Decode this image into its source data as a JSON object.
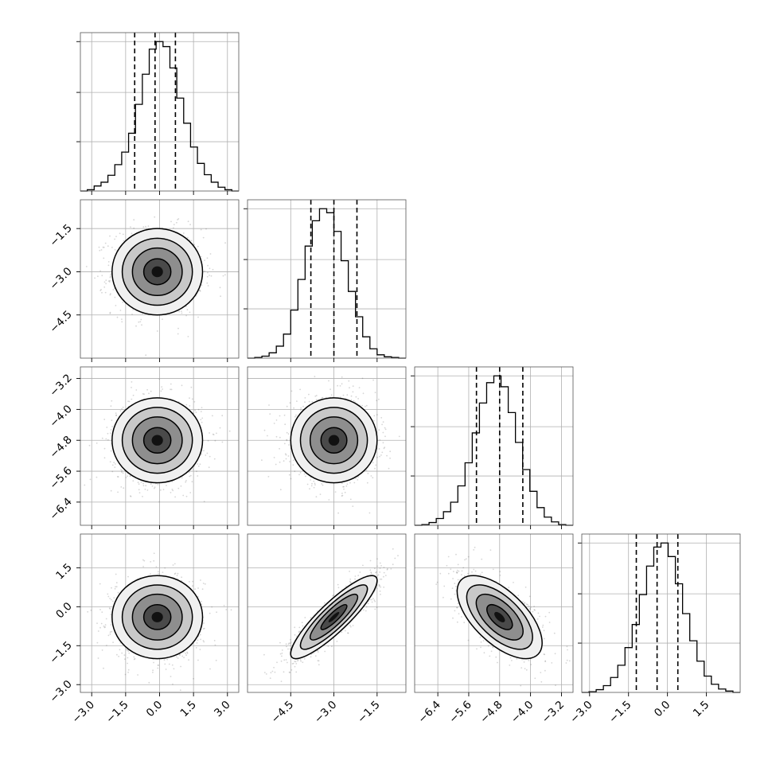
{
  "chart_data": {
    "type": "corner",
    "parameters": 4,
    "grid": true,
    "axes": [
      {
        "range": [
          -3.5,
          3.5
        ],
        "ticks": [
          -3.0,
          -1.5,
          0.0,
          1.5,
          3.0
        ],
        "tick_labels": [
          "−3.0",
          "−1.5",
          "0.0",
          "1.5",
          "3.0"
        ]
      },
      {
        "range": [
          -6.0,
          -0.5
        ],
        "ticks": [
          -4.5,
          -3.0,
          -1.5
        ],
        "tick_labels": [
          "−4.5",
          "−3.0",
          "−1.5"
        ]
      },
      {
        "range": [
          -7.0,
          -2.9
        ],
        "ticks": [
          -6.4,
          -5.6,
          -4.8,
          -4.0,
          -3.2
        ],
        "tick_labels": [
          "−6.4",
          "−5.6",
          "−4.8",
          "−4.0",
          "−3.2"
        ]
      },
      {
        "range": [
          -3.3,
          2.8
        ],
        "ticks": [
          -3.0,
          -1.5,
          0.0,
          1.5
        ],
        "tick_labels": [
          "−3.0",
          "−1.5",
          "0.0",
          "1.5"
        ]
      }
    ],
    "marginals": [
      {
        "bin_edges": [
          -3.5,
          3.5
        ],
        "counts": [
          0,
          2,
          8,
          14,
          25,
          42,
          62,
          92,
          138,
          186,
          226,
          238,
          230,
          196,
          148,
          108,
          70,
          44,
          26,
          14,
          6,
          2,
          0
        ],
        "quantiles": [
          -1.1,
          -0.2,
          0.7
        ]
      },
      {
        "bin_edges": [
          -6.0,
          -0.5
        ],
        "counts": [
          0,
          1,
          3,
          8,
          18,
          36,
          72,
          118,
          168,
          206,
          224,
          218,
          190,
          146,
          100,
          62,
          32,
          14,
          5,
          2,
          1,
          0
        ],
        "quantiles": [
          -3.8,
          -3.0,
          -2.2
        ]
      },
      {
        "bin_edges": [
          -7.0,
          -2.9
        ],
        "counts": [
          0,
          1,
          4,
          10,
          20,
          34,
          58,
          92,
          136,
          180,
          210,
          220,
          204,
          166,
          122,
          82,
          50,
          26,
          12,
          5,
          1,
          0
        ],
        "quantiles": [
          -5.4,
          -4.8,
          -4.2
        ]
      },
      {
        "bin_edges": [
          -3.3,
          2.8
        ],
        "counts": [
          0,
          1,
          4,
          10,
          22,
          40,
          66,
          100,
          144,
          186,
          214,
          220,
          200,
          160,
          116,
          76,
          46,
          24,
          12,
          5,
          2,
          0
        ],
        "quantiles": [
          -1.2,
          -0.4,
          0.4
        ]
      }
    ],
    "pairs": [
      {
        "row": 1,
        "col": 0,
        "mean": [
          -0.1,
          -3.0
        ],
        "std": [
          1.0,
          0.75
        ],
        "corr": 0.0
      },
      {
        "row": 2,
        "col": 0,
        "mean": [
          -0.1,
          -4.8
        ],
        "std": [
          1.0,
          0.55
        ],
        "corr": 0.0
      },
      {
        "row": 2,
        "col": 1,
        "mean": [
          -3.0,
          -4.8
        ],
        "std": [
          0.75,
          0.55
        ],
        "corr": 0.0
      },
      {
        "row": 3,
        "col": 0,
        "mean": [
          -0.1,
          -0.4
        ],
        "std": [
          1.0,
          0.8
        ],
        "corr": 0.0
      },
      {
        "row": 3,
        "col": 1,
        "mean": [
          -3.0,
          -0.4
        ],
        "std": [
          0.75,
          0.8
        ],
        "corr": 0.88
      },
      {
        "row": 3,
        "col": 2,
        "mean": [
          -4.8,
          -0.4
        ],
        "std": [
          0.55,
          0.8
        ],
        "corr": -0.62
      }
    ]
  }
}
